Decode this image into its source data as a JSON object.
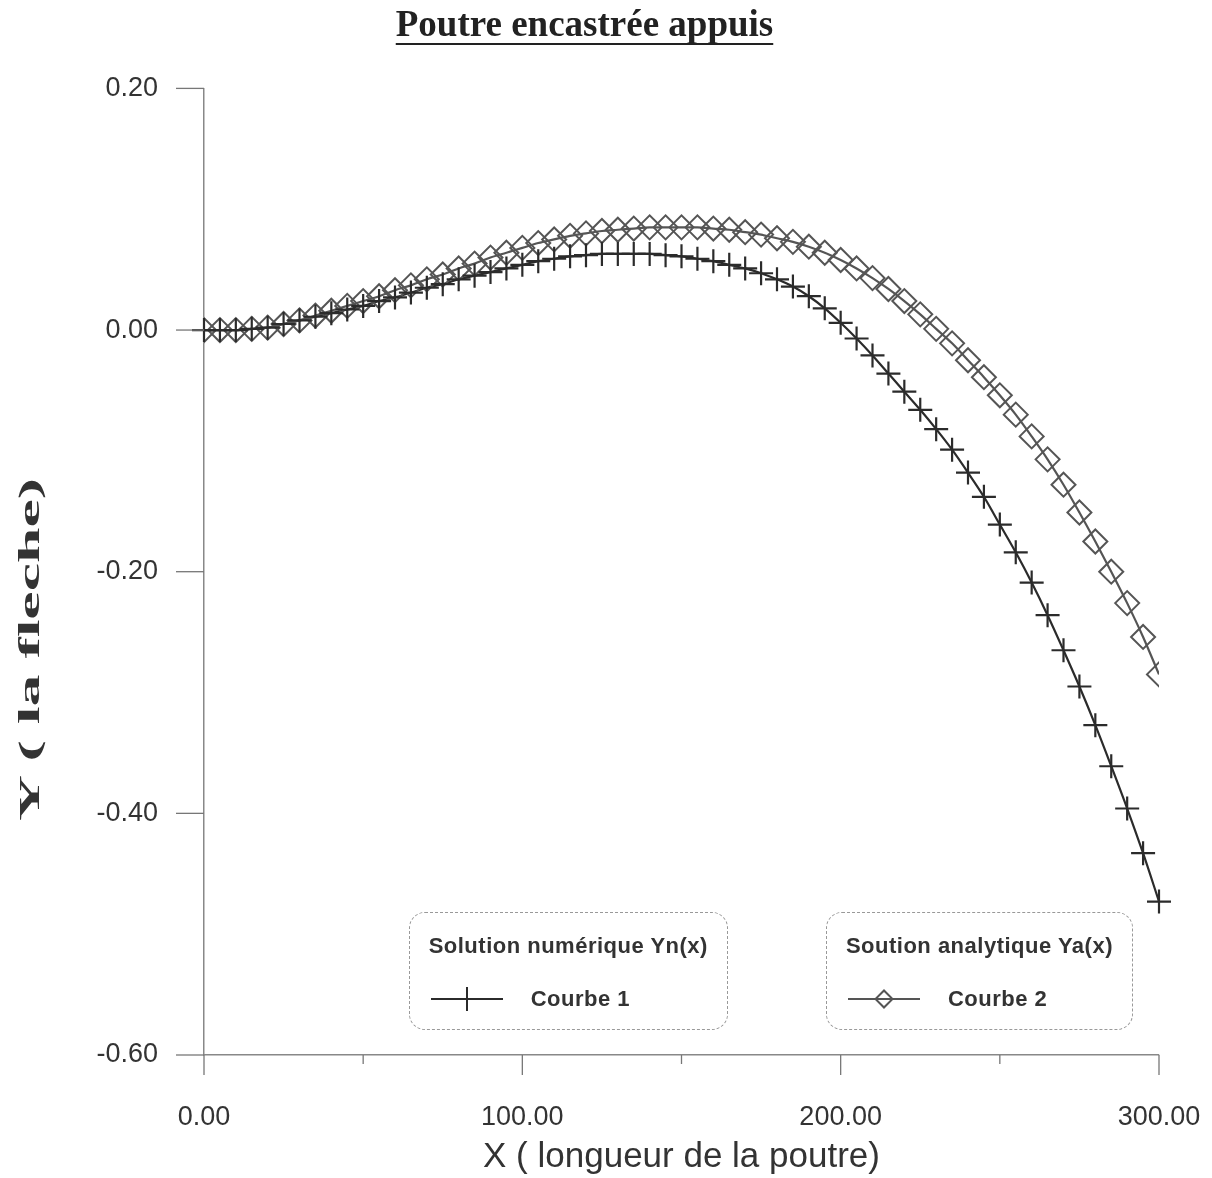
{
  "chart_data": {
    "type": "line",
    "title": "Poutre encastrée appuis",
    "xlabel": "X ( longueur de la poutre)",
    "ylabel": "Y ( la fleche)",
    "x": [
      0,
      5,
      10,
      15,
      20,
      25,
      30,
      35,
      40,
      45,
      50,
      55,
      60,
      65,
      70,
      75,
      80,
      85,
      90,
      95,
      100,
      105,
      110,
      115,
      120,
      125,
      130,
      135,
      140,
      145,
      150,
      155,
      160,
      165,
      170,
      175,
      180,
      185,
      190,
      195,
      200,
      205,
      210,
      215,
      220,
      225,
      230,
      235,
      240,
      245,
      250,
      255,
      260,
      265,
      270,
      275,
      280,
      285,
      290,
      295,
      300
    ],
    "series": [
      {
        "name": "Courbe 1",
        "color": "#2b2b2b",
        "marker": "cross",
        "values": [
          0,
          0,
          0,
          0.001,
          0.002,
          0.005,
          0.008,
          0.011,
          0.014,
          0.017,
          0.02,
          0.024,
          0.027,
          0.031,
          0.035,
          0.038,
          0.042,
          0.045,
          0.048,
          0.051,
          0.054,
          0.057,
          0.059,
          0.061,
          0.062,
          0.063,
          0.063,
          0.063,
          0.063,
          0.062,
          0.061,
          0.059,
          0.057,
          0.054,
          0.051,
          0.047,
          0.042,
          0.036,
          0.028,
          0.018,
          0.006,
          -0.007,
          -0.021,
          -0.036,
          -0.051,
          -0.066,
          -0.082,
          -0.099,
          -0.118,
          -0.138,
          -0.161,
          -0.184,
          -0.209,
          -0.236,
          -0.265,
          -0.295,
          -0.327,
          -0.361,
          -0.396,
          -0.433,
          -0.473
        ]
      },
      {
        "name": "Courbe 2",
        "color": "#555555",
        "marker": "diamond",
        "values": [
          0,
          0,
          0,
          0.001,
          0.002,
          0.005,
          0.008,
          0.012,
          0.016,
          0.02,
          0.024,
          0.028,
          0.033,
          0.037,
          0.042,
          0.046,
          0.051,
          0.055,
          0.06,
          0.064,
          0.068,
          0.072,
          0.075,
          0.078,
          0.08,
          0.082,
          0.083,
          0.084,
          0.085,
          0.085,
          0.085,
          0.085,
          0.084,
          0.083,
          0.081,
          0.079,
          0.076,
          0.073,
          0.069,
          0.064,
          0.058,
          0.051,
          0.043,
          0.034,
          0.024,
          0.013,
          0.001,
          -0.011,
          -0.025,
          -0.039,
          -0.054,
          -0.07,
          -0.088,
          -0.107,
          -0.128,
          -0.151,
          -0.175,
          -0.2,
          -0.226,
          -0.254,
          -0.285
        ]
      }
    ],
    "xlim": [
      0,
      300
    ],
    "xticks": [
      {
        "value": 0,
        "label": "0.00"
      },
      {
        "value": 50,
        "label": null
      },
      {
        "value": 100,
        "label": "100.00"
      },
      {
        "value": 150,
        "label": null
      },
      {
        "value": 200,
        "label": "200.00"
      },
      {
        "value": 250,
        "label": null
      },
      {
        "value": 300,
        "label": "300.00"
      }
    ],
    "ylim": [
      -0.6,
      0.2
    ],
    "yticks": [
      {
        "value": -0.6,
        "label": "-0.60"
      },
      {
        "value": -0.4,
        "label": "-0.40"
      },
      {
        "value": -0.2,
        "label": "-0.20"
      },
      {
        "value": 0,
        "label": "0.00"
      },
      {
        "value": 0.2,
        "label": "0.20"
      }
    ],
    "grid": false,
    "legend": "bottom right",
    "annotations": [
      "Solution numérique Yn(x)",
      "Soution analytique Ya(x)"
    ]
  }
}
